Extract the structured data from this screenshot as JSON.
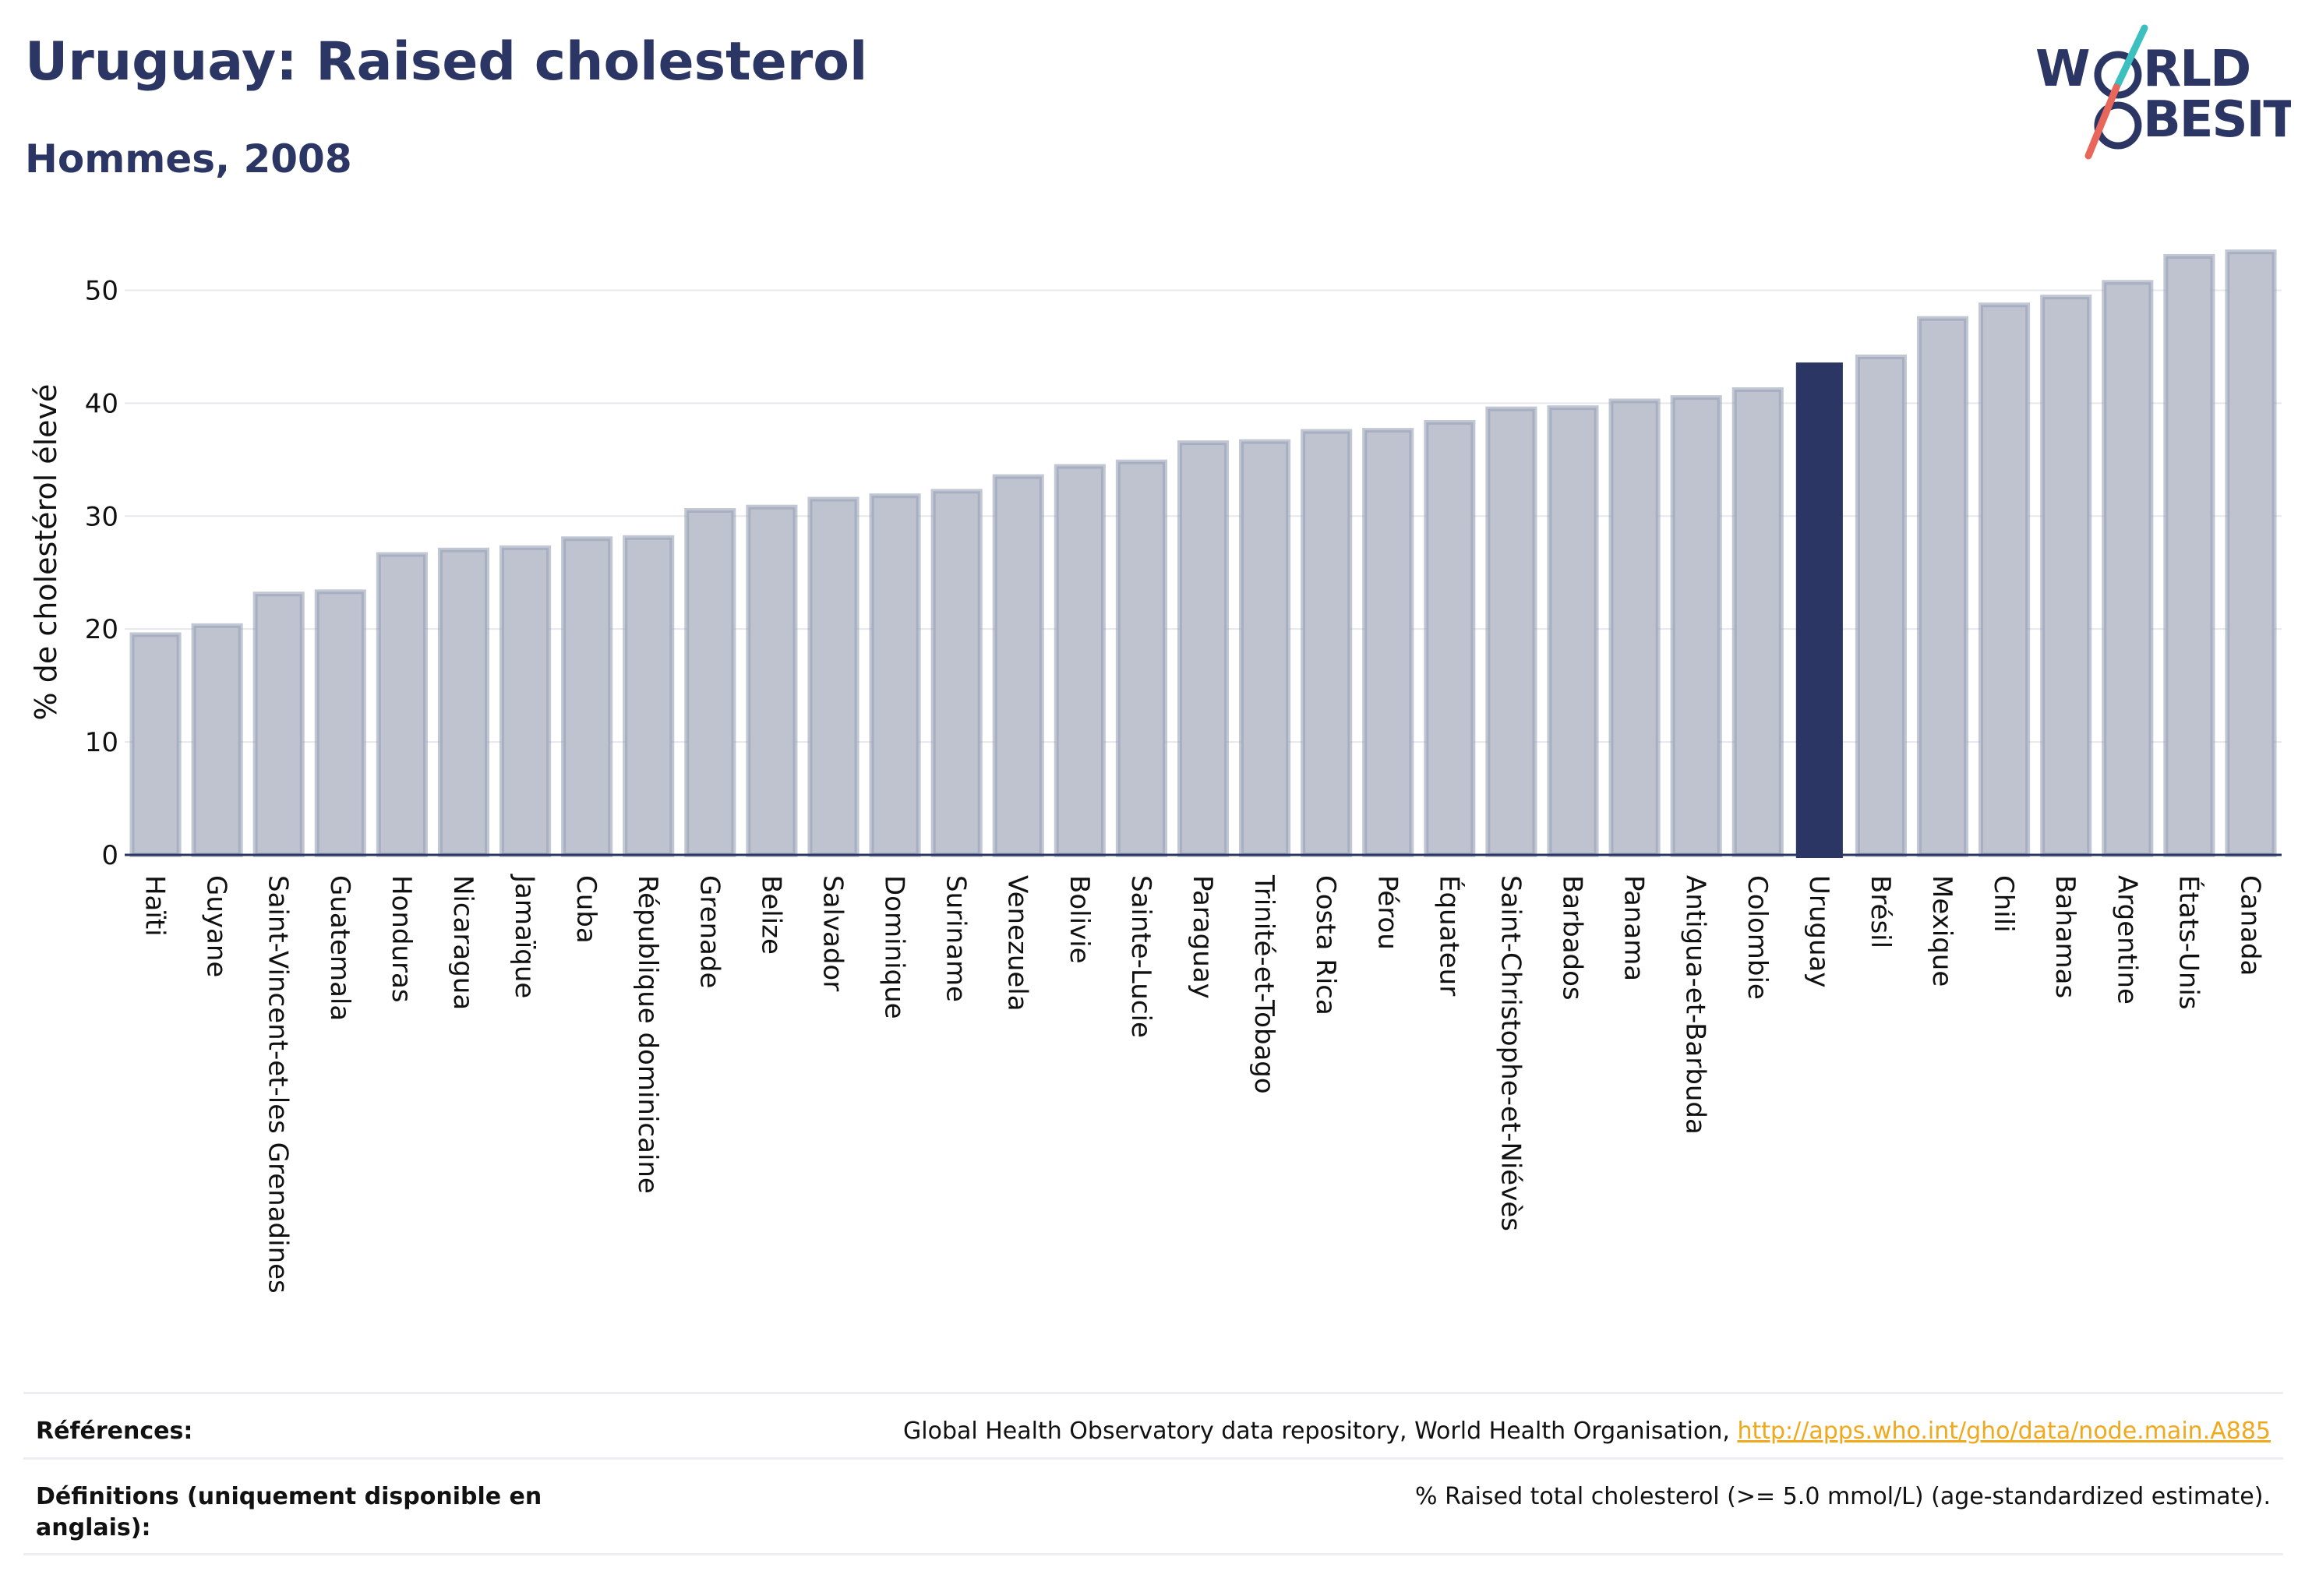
{
  "header": {
    "title": "Uruguay: Raised cholesterol",
    "subtitle": "Hommes, 2008"
  },
  "logo": {
    "line1": "W   RLD",
    "line2": "  BESITY",
    "colors": {
      "navy": "#2b3664",
      "teal": "#3bbfbf",
      "coral": "#e8675a"
    }
  },
  "chart_data": {
    "type": "bar",
    "title": "",
    "xlabel": "",
    "ylabel": "% de cholestérol élevé",
    "ylim": [
      0,
      55
    ],
    "yticks": [
      0,
      10,
      20,
      30,
      40,
      50
    ],
    "grid": true,
    "highlight": "Uruguay",
    "colors": {
      "bar": "#bfc3d0",
      "bar_border": "#9aa1b8",
      "highlight": "#2b3664"
    },
    "categories": [
      "Haïti",
      "Guyane",
      "Saint-Vincent-et-les Grenadines",
      "Guatemala",
      "Honduras",
      "Nicaragua",
      "Jamaïque",
      "Cuba",
      "République dominicaine",
      "Grenade",
      "Belize",
      "Salvador",
      "Dominique",
      "Suriname",
      "Venezuela",
      "Bolivie",
      "Sainte-Lucie",
      "Paraguay",
      "Trinité-et-Tobago",
      "Costa Rica",
      "Pérou",
      "Équateur",
      "Saint-Christophe-et-Niévès",
      "Barbados",
      "Panama",
      "Antigua-et-Barbuda",
      "Colombie",
      "Uruguay",
      "Brésil",
      "Mexique",
      "Chili",
      "Bahamas",
      "Argentine",
      "États-Unis",
      "Canada"
    ],
    "values": [
      19.5,
      20.3,
      23.1,
      23.3,
      26.6,
      27.0,
      27.2,
      28.0,
      28.1,
      30.5,
      30.8,
      31.5,
      31.8,
      32.2,
      33.5,
      34.4,
      34.8,
      36.5,
      36.6,
      37.5,
      37.6,
      38.3,
      39.5,
      39.6,
      40.2,
      40.5,
      41.2,
      43.6,
      44.1,
      47.5,
      48.7,
      49.4,
      50.7,
      53.0,
      53.4
    ]
  },
  "footer": {
    "references_label": "Références:",
    "references_text": "Global Health Observatory data repository, World Health Organisation, ",
    "references_link": "http://apps.who.int/gho/data/node.main.A885",
    "definitions_label": "Définitions (uniquement disponible en anglais):",
    "definitions_text": "% Raised total cholesterol (>= 5.0 mmol/L) (age-standardized estimate)."
  }
}
